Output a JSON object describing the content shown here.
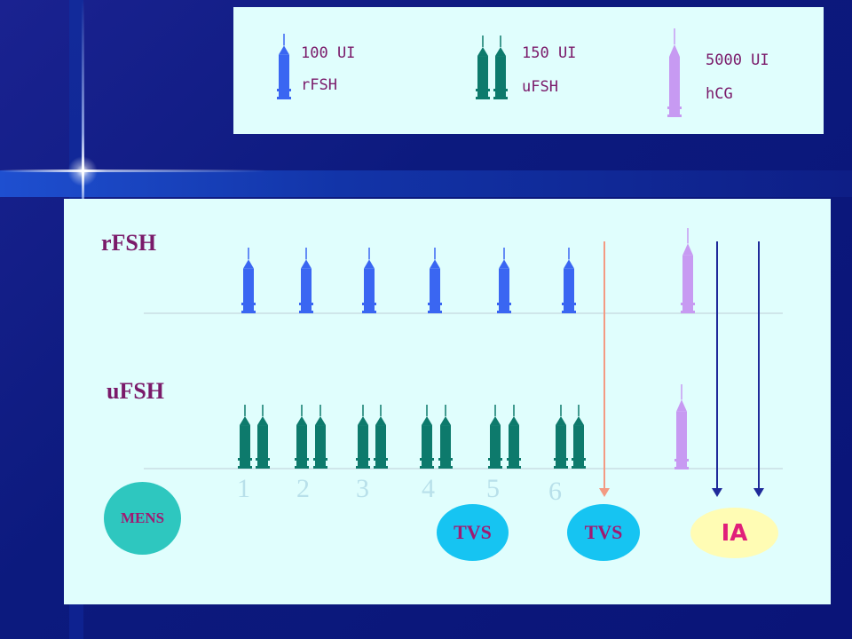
{
  "legend": {
    "rfsh": {
      "dose": "100 UI",
      "name": "rFSH"
    },
    "ufsh": {
      "dose": "150 UI",
      "name": "uFSH"
    },
    "hcg": {
      "dose": "5000 UI",
      "name": "hCG"
    }
  },
  "rows": {
    "rfsh_label": "rFSH",
    "ufsh_label": "uFSH"
  },
  "days": [
    "1",
    "2",
    "3",
    "4",
    "5",
    "6"
  ],
  "events": {
    "mens": "MENS",
    "tvs1": "TVS",
    "tvs2": "TVS",
    "ia": "IA"
  },
  "colors": {
    "rfsh": "#3a66f2",
    "ufsh": "#0d7a6c",
    "hcg": "#c79af2",
    "panel": "#e0fefd",
    "label": "#7a1a6a",
    "mens_fill": "#2ec7bf",
    "tvs_fill": "#16c4f2",
    "ia_fill": "#fffcb4",
    "ia_text": "#e0207a",
    "salmon_arrow": "#f39a82",
    "blue_arrow": "#1f2a9a"
  }
}
